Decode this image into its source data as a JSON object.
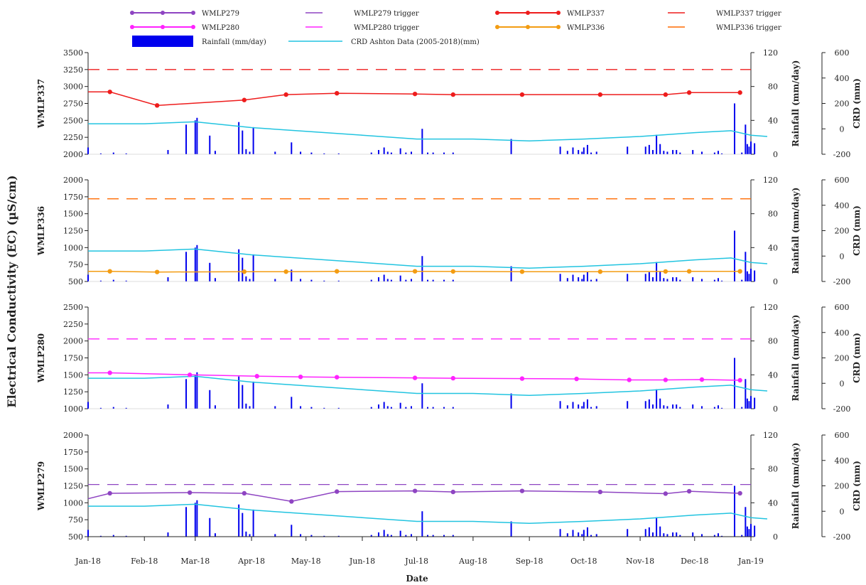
{
  "chart_data": {
    "type": "line",
    "ylabel": "Electrical Conductivity (EC) (µS/cm)",
    "xlabel": "Date",
    "x_range": [
      "2018-01-01",
      "2019-01-01"
    ],
    "x_ticks": [
      "Jan-18",
      "Feb-18",
      "Mar-18",
      "Apr-18",
      "May-18",
      "Jun-18",
      "Jul-18",
      "Aug-18",
      "Sep-18",
      "Oct-18",
      "Nov-18",
      "Dec-18",
      "Jan-19"
    ],
    "rain_axis": {
      "label": "Rainfall (mm/day)",
      "ylim": [
        0,
        120
      ],
      "ticks": [
        0,
        40,
        80,
        120
      ]
    },
    "crd_axis": {
      "label": "CRD (mm)",
      "ylim": [
        -200,
        600
      ],
      "ticks": [
        -200,
        0,
        200,
        400,
        600
      ]
    },
    "legend": [
      {
        "label": "WMLP279",
        "color": "#8e44c2",
        "kind": "line-marker"
      },
      {
        "label": "WMLP279 trigger",
        "color": "#8e44c2",
        "kind": "dash"
      },
      {
        "label": "WMLP337",
        "color": "#ee1c1c",
        "kind": "line-marker"
      },
      {
        "label": "WMLP337 trigger",
        "color": "#ee1c1c",
        "kind": "dash"
      },
      {
        "label": "WMLP280",
        "color": "#ff22ff",
        "kind": "line-marker"
      },
      {
        "label": "WMLP280 trigger",
        "color": "#ff22ff",
        "kind": "dash"
      },
      {
        "label": "WMLP336",
        "color": "#f39c12",
        "kind": "line-marker"
      },
      {
        "label": "WMLP336 trigger",
        "color": "#ff6a00",
        "kind": "dash"
      },
      {
        "label": "Rainfall (mm/day)",
        "color": "#0000ee",
        "kind": "bar"
      },
      {
        "label": "CRD Ashton Data (2005-2018)(mm)",
        "color": "#22c4e0",
        "kind": "line"
      }
    ],
    "rainfall": [
      [
        "2018-01-01",
        8
      ],
      [
        "2018-01-08",
        1
      ],
      [
        "2018-01-15",
        2
      ],
      [
        "2018-01-22",
        1
      ],
      [
        "2018-02-14",
        5
      ],
      [
        "2018-02-24",
        35
      ],
      [
        "2018-03-01",
        40
      ],
      [
        "2018-03-02",
        43
      ],
      [
        "2018-03-09",
        22
      ],
      [
        "2018-03-12",
        4
      ],
      [
        "2018-03-25",
        38
      ],
      [
        "2018-03-27",
        28
      ],
      [
        "2018-03-29",
        6
      ],
      [
        "2018-03-31",
        3
      ],
      [
        "2018-04-02",
        32
      ],
      [
        "2018-04-14",
        3
      ],
      [
        "2018-04-23",
        14
      ],
      [
        "2018-04-28",
        3
      ],
      [
        "2018-05-04",
        2
      ],
      [
        "2018-05-11",
        1
      ],
      [
        "2018-05-19",
        1
      ],
      [
        "2018-06-06",
        2
      ],
      [
        "2018-06-10",
        5
      ],
      [
        "2018-06-13",
        8
      ],
      [
        "2018-06-15",
        3
      ],
      [
        "2018-06-17",
        2
      ],
      [
        "2018-06-22",
        7
      ],
      [
        "2018-06-25",
        2
      ],
      [
        "2018-06-28",
        3
      ],
      [
        "2018-07-04",
        30
      ],
      [
        "2018-07-07",
        2
      ],
      [
        "2018-07-10",
        2
      ],
      [
        "2018-07-16",
        2
      ],
      [
        "2018-07-21",
        2
      ],
      [
        "2018-08-22",
        18
      ],
      [
        "2018-09-18",
        9
      ],
      [
        "2018-09-22",
        4
      ],
      [
        "2018-09-25",
        8
      ],
      [
        "2018-09-28",
        5
      ],
      [
        "2018-09-30",
        3
      ],
      [
        "2018-10-01",
        8
      ],
      [
        "2018-10-03",
        11
      ],
      [
        "2018-10-05",
        2
      ],
      [
        "2018-10-08",
        3
      ],
      [
        "2018-10-25",
        9
      ],
      [
        "2018-11-04",
        9
      ],
      [
        "2018-11-06",
        11
      ],
      [
        "2018-11-08",
        5
      ],
      [
        "2018-11-10",
        23
      ],
      [
        "2018-11-12",
        12
      ],
      [
        "2018-11-14",
        4
      ],
      [
        "2018-11-16",
        3
      ],
      [
        "2018-11-19",
        5
      ],
      [
        "2018-11-21",
        5
      ],
      [
        "2018-11-23",
        2
      ],
      [
        "2018-11-30",
        5
      ],
      [
        "2018-12-05",
        3
      ],
      [
        "2018-12-12",
        2
      ],
      [
        "2018-12-14",
        4
      ],
      [
        "2018-12-16",
        1
      ],
      [
        "2018-12-23",
        60
      ],
      [
        "2018-12-27",
        2
      ],
      [
        "2018-12-29",
        35
      ],
      [
        "2018-12-30",
        12
      ],
      [
        "2018-12-31",
        9
      ],
      [
        "2019-01-01",
        15
      ],
      [
        "2019-01-03",
        13
      ],
      [
        "2019-01-05",
        3
      ],
      [
        "2019-01-06",
        14
      ]
    ],
    "crd": [
      [
        "2018-01-01",
        40
      ],
      [
        "2018-02-01",
        40
      ],
      [
        "2018-03-01",
        55
      ],
      [
        "2018-04-01",
        10
      ],
      [
        "2018-05-01",
        -20
      ],
      [
        "2018-06-01",
        -50
      ],
      [
        "2018-07-01",
        -80
      ],
      [
        "2018-08-01",
        -80
      ],
      [
        "2018-09-01",
        -95
      ],
      [
        "2018-10-01",
        -80
      ],
      [
        "2018-11-01",
        -60
      ],
      [
        "2018-12-01",
        -30
      ],
      [
        "2018-12-21",
        -15
      ],
      [
        "2019-01-01",
        -50
      ],
      [
        "2019-01-10",
        -60
      ]
    ],
    "panels": [
      {
        "name": "WMLP337",
        "ylim": [
          2000,
          3500
        ],
        "yticks": [
          2000,
          2250,
          2500,
          2750,
          3000,
          3250,
          3500
        ],
        "trigger": 3250,
        "color": "#ee1c1c",
        "trigger_color": "#ee1c1c",
        "crd_color": "#22c4e0",
        "series": [
          [
            "2018-01-01",
            2920
          ],
          [
            "2018-01-13",
            2920
          ],
          [
            "2018-02-08",
            2720
          ],
          [
            "2018-03-28",
            2800
          ],
          [
            "2018-04-20",
            2880
          ],
          [
            "2018-05-18",
            2900
          ],
          [
            "2018-06-30",
            2890
          ],
          [
            "2018-07-21",
            2880
          ],
          [
            "2018-08-28",
            2880
          ],
          [
            "2018-10-10",
            2880
          ],
          [
            "2018-11-15",
            2880
          ],
          [
            "2018-11-28",
            2910
          ],
          [
            "2018-12-26",
            2910
          ]
        ]
      },
      {
        "name": "WMLP336",
        "ylim": [
          500,
          2000
        ],
        "yticks": [
          500,
          750,
          1000,
          1250,
          1500,
          1750,
          2000
        ],
        "trigger": 1720,
        "color": "#f39c12",
        "trigger_color": "#ff6a00",
        "crd_color": "#22c4e0",
        "series": [
          [
            "2018-01-01",
            650
          ],
          [
            "2018-01-13",
            650
          ],
          [
            "2018-02-08",
            640
          ],
          [
            "2018-03-28",
            645
          ],
          [
            "2018-04-20",
            645
          ],
          [
            "2018-05-18",
            650
          ],
          [
            "2018-06-30",
            650
          ],
          [
            "2018-07-21",
            648
          ],
          [
            "2018-08-28",
            645
          ],
          [
            "2018-10-10",
            645
          ],
          [
            "2018-11-15",
            648
          ],
          [
            "2018-11-28",
            650
          ],
          [
            "2018-12-26",
            650
          ]
        ]
      },
      {
        "name": "WMLP280",
        "ylim": [
          1000,
          2500
        ],
        "yticks": [
          1000,
          1250,
          1500,
          1750,
          2000,
          2250,
          2500
        ],
        "trigger": 2030,
        "color": "#ff22ff",
        "trigger_color": "#ff22ff",
        "crd_color": "#22c4e0",
        "series": [
          [
            "2018-01-01",
            1530
          ],
          [
            "2018-01-13",
            1530
          ],
          [
            "2018-02-26",
            1500
          ],
          [
            "2018-04-04",
            1480
          ],
          [
            "2018-04-28",
            1470
          ],
          [
            "2018-05-18",
            1465
          ],
          [
            "2018-06-30",
            1455
          ],
          [
            "2018-07-21",
            1450
          ],
          [
            "2018-08-28",
            1445
          ],
          [
            "2018-09-27",
            1440
          ],
          [
            "2018-10-26",
            1425
          ],
          [
            "2018-11-15",
            1425
          ],
          [
            "2018-12-05",
            1430
          ],
          [
            "2018-12-26",
            1420
          ]
        ]
      },
      {
        "name": "WMLP279",
        "ylim": [
          500,
          2000
        ],
        "yticks": [
          500,
          750,
          1000,
          1250,
          1500,
          1750,
          2000
        ],
        "trigger": 1270,
        "color": "#8e44c2",
        "trigger_color": "#8e44c2",
        "crd_color": "#22c4e0",
        "series": [
          [
            "2018-01-01",
            1060
          ],
          [
            "2018-01-13",
            1140
          ],
          [
            "2018-02-26",
            1150
          ],
          [
            "2018-03-28",
            1140
          ],
          [
            "2018-04-23",
            1020
          ],
          [
            "2018-05-18",
            1165
          ],
          [
            "2018-06-30",
            1175
          ],
          [
            "2018-07-21",
            1160
          ],
          [
            "2018-08-28",
            1175
          ],
          [
            "2018-10-10",
            1160
          ],
          [
            "2018-11-15",
            1135
          ],
          [
            "2018-11-28",
            1170
          ],
          [
            "2018-12-26",
            1140
          ]
        ]
      }
    ]
  }
}
